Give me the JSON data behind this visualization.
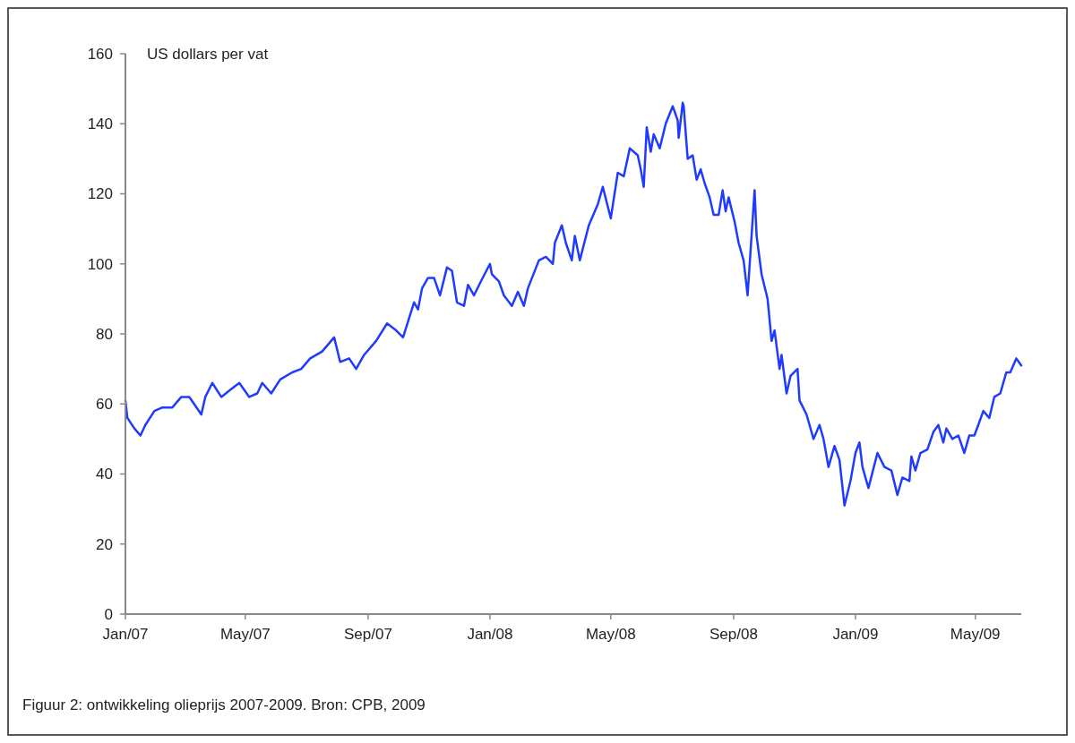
{
  "chart_data": {
    "type": "line",
    "ylabel": "US dollars per vat",
    "annotations": [
      "Figuur 2: ontwikkeling olieprijs 2007-2009. Bron: CPB, 2009"
    ],
    "xlim": [
      "2007-01-01",
      "2009-06-16"
    ],
    "xticks": [
      {
        "value": "2007-01-01",
        "label": "Jan/07"
      },
      {
        "value": "2007-05-01",
        "label": "May/07"
      },
      {
        "value": "2007-09-01",
        "label": "Sep/07"
      },
      {
        "value": "2008-01-01",
        "label": "Jan/08"
      },
      {
        "value": "2008-05-01",
        "label": "May/08"
      },
      {
        "value": "2008-09-01",
        "label": "Sep/08"
      },
      {
        "value": "2009-01-01",
        "label": "Jan/09"
      },
      {
        "value": "2009-05-01",
        "label": "May/09"
      }
    ],
    "ylim": [
      0,
      160
    ],
    "yticks": [
      0,
      20,
      40,
      60,
      80,
      100,
      120,
      140,
      160
    ],
    "grid": false,
    "marker": "none",
    "line_style": "solid",
    "x": [
      "2007-01-01",
      "2007-01-03",
      "2007-01-10",
      "2007-01-16",
      "2007-01-21",
      "2007-01-30",
      "2007-02-07",
      "2007-02-17",
      "2007-02-26",
      "2007-03-06",
      "2007-03-18",
      "2007-03-22",
      "2007-03-29",
      "2007-04-07",
      "2007-04-16",
      "2007-04-25",
      "2007-05-05",
      "2007-05-13",
      "2007-05-18",
      "2007-05-27",
      "2007-06-05",
      "2007-06-17",
      "2007-06-26",
      "2007-07-05",
      "2007-07-17",
      "2007-07-29",
      "2007-08-04",
      "2007-08-13",
      "2007-08-20",
      "2007-08-28",
      "2007-09-09",
      "2007-09-20",
      "2007-09-29",
      "2007-10-06",
      "2007-10-17",
      "2007-10-21",
      "2007-10-25",
      "2007-10-31",
      "2007-11-06",
      "2007-11-12",
      "2007-11-19",
      "2007-11-24",
      "2007-11-29",
      "2007-12-06",
      "2007-12-10",
      "2007-12-16",
      "2007-12-23",
      "2008-01-01",
      "2008-01-03",
      "2008-01-10",
      "2008-01-15",
      "2008-01-23",
      "2008-01-29",
      "2008-02-04",
      "2008-02-08",
      "2008-02-19",
      "2008-02-26",
      "2008-03-04",
      "2008-03-06",
      "2008-03-13",
      "2008-03-17",
      "2008-03-23",
      "2008-03-26",
      "2008-03-31",
      "2008-04-09",
      "2008-04-18",
      "2008-04-23",
      "2008-05-01",
      "2008-05-08",
      "2008-05-14",
      "2008-05-20",
      "2008-05-28",
      "2008-05-31",
      "2008-06-03",
      "2008-06-06",
      "2008-06-10",
      "2008-06-13",
      "2008-06-19",
      "2008-06-25",
      "2008-07-02",
      "2008-07-07",
      "2008-07-08",
      "2008-07-12",
      "2008-07-13",
      "2008-07-17",
      "2008-07-22",
      "2008-07-26",
      "2008-07-30",
      "2008-08-03",
      "2008-08-08",
      "2008-08-12",
      "2008-08-17",
      "2008-08-21",
      "2008-08-24",
      "2008-08-27",
      "2008-09-02",
      "2008-09-06",
      "2008-09-11",
      "2008-09-15",
      "2008-09-22",
      "2008-09-24",
      "2008-09-29",
      "2008-10-05",
      "2008-10-09",
      "2008-10-12",
      "2008-10-17",
      "2008-10-19",
      "2008-10-24",
      "2008-10-28",
      "2008-11-04",
      "2008-11-06",
      "2008-11-13",
      "2008-11-20",
      "2008-11-26",
      "2008-11-30",
      "2008-12-05",
      "2008-12-11",
      "2008-12-16",
      "2008-12-21",
      "2008-12-27",
      "2009-01-01",
      "2009-01-05",
      "2009-01-08",
      "2009-01-14",
      "2009-01-23",
      "2009-01-30",
      "2009-02-06",
      "2009-02-12",
      "2009-02-17",
      "2009-02-24",
      "2009-02-26",
      "2009-03-02",
      "2009-03-07",
      "2009-03-14",
      "2009-03-20",
      "2009-03-25",
      "2009-03-30",
      "2009-04-02",
      "2009-04-08",
      "2009-04-14",
      "2009-04-20",
      "2009-04-25",
      "2009-04-30",
      "2009-05-04",
      "2009-05-09",
      "2009-05-15",
      "2009-05-20",
      "2009-05-26",
      "2009-06-01",
      "2009-06-05",
      "2009-06-11",
      "2009-06-16"
    ],
    "series": [
      {
        "color": "#1f3bff",
        "values": [
          61,
          56,
          53,
          51,
          54,
          58,
          59,
          59,
          62,
          62,
          57,
          62,
          66,
          62,
          64,
          66,
          62,
          63,
          66,
          63,
          67,
          69,
          70,
          73,
          75,
          79,
          72,
          73,
          70,
          74,
          78,
          83,
          81,
          79,
          89,
          87,
          93,
          96,
          96,
          91,
          99,
          98,
          89,
          88,
          94,
          91,
          95,
          100,
          97,
          95,
          91,
          88,
          92,
          88,
          93,
          101,
          102,
          100,
          106,
          111,
          106,
          101,
          108,
          101,
          111,
          117,
          122,
          113,
          126,
          125,
          133,
          131,
          127,
          122,
          139,
          132,
          137,
          133,
          140,
          145,
          141,
          136,
          146,
          145,
          130,
          131,
          124,
          127,
          123,
          119,
          114,
          114,
          121,
          115,
          119,
          112,
          106,
          101,
          91,
          121,
          108,
          97,
          90,
          78,
          81,
          70,
          74,
          63,
          68,
          70,
          61,
          57,
          50,
          54,
          50,
          42,
          48,
          44,
          31,
          38,
          46,
          49,
          42,
          36,
          46,
          42,
          41,
          34,
          39,
          38,
          45,
          41,
          46,
          47,
          52,
          54,
          49,
          53,
          50,
          51,
          46,
          51,
          51,
          54,
          58,
          56,
          62,
          63,
          69,
          69,
          73,
          71
        ]
      }
    ]
  }
}
